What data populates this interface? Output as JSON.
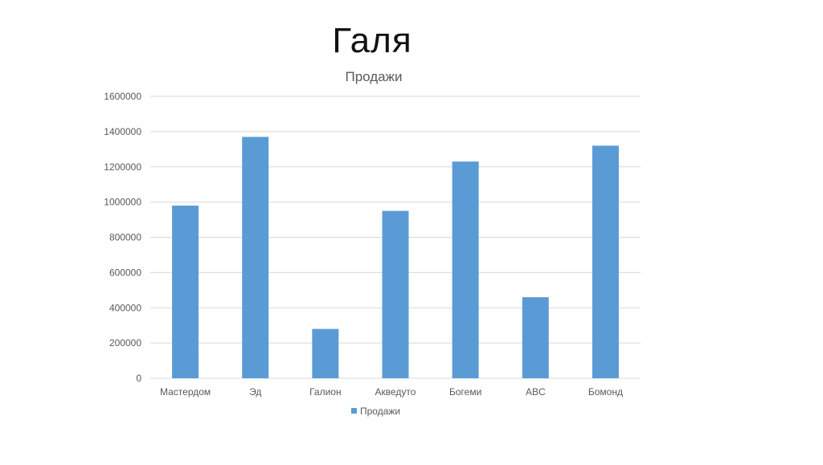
{
  "slide": {
    "title": "Галя"
  },
  "chart_data": {
    "type": "bar",
    "title": "Продажи",
    "categories": [
      "Мастердом",
      "Эд",
      "Галион",
      "Акведуто",
      "Богеми",
      "ABC",
      "Бомонд"
    ],
    "series": [
      {
        "name": "Продажи",
        "values": [
          980000,
          1370000,
          280000,
          950000,
          1230000,
          460000,
          1320000
        ]
      }
    ],
    "ylim": [
      0,
      1600000
    ],
    "yticks": [
      "0",
      "200000",
      "400000",
      "600000",
      "800000",
      "1000000",
      "1200000",
      "1400000",
      "1600000"
    ],
    "grid": true,
    "legend_position": "bottom",
    "colors": {
      "bar": "#5b9bd5",
      "grid": "#d9d9d9",
      "axis_text": "#595959",
      "title_text": "#595959"
    }
  }
}
